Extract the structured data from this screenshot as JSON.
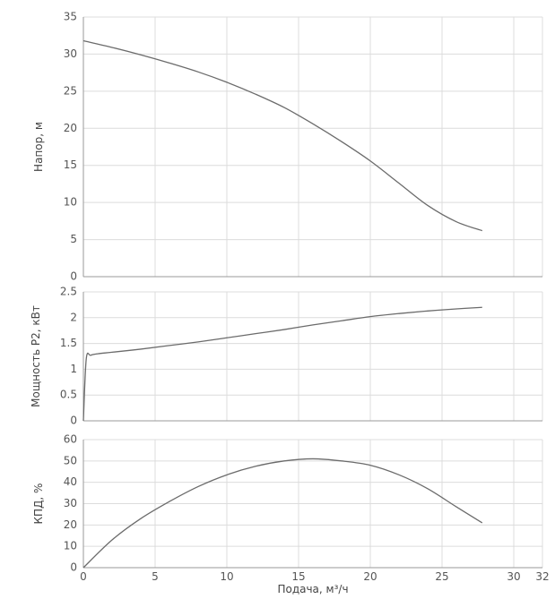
{
  "chart_data": [
    {
      "type": "line",
      "title": "",
      "ylabel": "Напор, м",
      "xlim": [
        0,
        32
      ],
      "ylim": [
        0,
        35
      ],
      "yticks": [
        0,
        5,
        10,
        15,
        20,
        25,
        30,
        35
      ],
      "yticks_labels": [
        "0",
        "5",
        "10",
        "15",
        "20",
        "25",
        "30",
        "35"
      ],
      "grid": true,
      "series": [
        {
          "color": "#6b6b6b",
          "x": [
            0,
            2,
            4,
            6,
            8,
            10,
            12,
            14,
            16,
            18,
            20,
            22,
            24,
            26,
            27.8
          ],
          "y": [
            31.8,
            30.9,
            29.9,
            28.8,
            27.6,
            26.2,
            24.6,
            22.8,
            20.6,
            18.2,
            15.6,
            12.6,
            9.6,
            7.4,
            6.2
          ]
        }
      ]
    },
    {
      "type": "line",
      "title": "",
      "ylabel": "Мощность P2, кВт",
      "xlim": [
        0,
        32
      ],
      "ylim": [
        0,
        2.5
      ],
      "yticks": [
        0,
        0.5,
        1,
        1.5,
        2,
        2.5
      ],
      "yticks_labels": [
        "0",
        "0.5",
        "1",
        "1.5",
        "2",
        "2.5"
      ],
      "grid": true,
      "series": [
        {
          "color": "#6b6b6b",
          "x": [
            0,
            0.2,
            0.5,
            1,
            2,
            4,
            6,
            8,
            10,
            12,
            14,
            16,
            18,
            20,
            22,
            24,
            26,
            27.8
          ],
          "y": [
            0,
            1.2,
            1.27,
            1.3,
            1.33,
            1.39,
            1.46,
            1.53,
            1.61,
            1.69,
            1.77,
            1.86,
            1.94,
            2.02,
            2.08,
            2.13,
            2.17,
            2.2
          ]
        }
      ]
    },
    {
      "type": "line",
      "title": "",
      "ylabel": "КПД, %",
      "xlabel": "Подача, м³/ч",
      "xlim": [
        0,
        32
      ],
      "ylim": [
        0,
        60
      ],
      "xticks": [
        0,
        5,
        10,
        15,
        20,
        25,
        30,
        32
      ],
      "xticks_labels": [
        "0",
        "5",
        "10",
        "15",
        "20",
        "25",
        "30",
        "32"
      ],
      "yticks": [
        0,
        10,
        20,
        30,
        40,
        50,
        60
      ],
      "yticks_labels": [
        "0",
        "10",
        "20",
        "30",
        "40",
        "50",
        "60"
      ],
      "grid": true,
      "series": [
        {
          "color": "#6b6b6b",
          "x": [
            0,
            2,
            4,
            6,
            8,
            10,
            12,
            14,
            16,
            18,
            20,
            22,
            24,
            26,
            27.8
          ],
          "y": [
            0,
            13,
            23,
            31,
            38,
            43.5,
            47.5,
            50,
            51,
            50,
            48,
            43.5,
            37,
            28.5,
            21
          ]
        }
      ]
    }
  ]
}
